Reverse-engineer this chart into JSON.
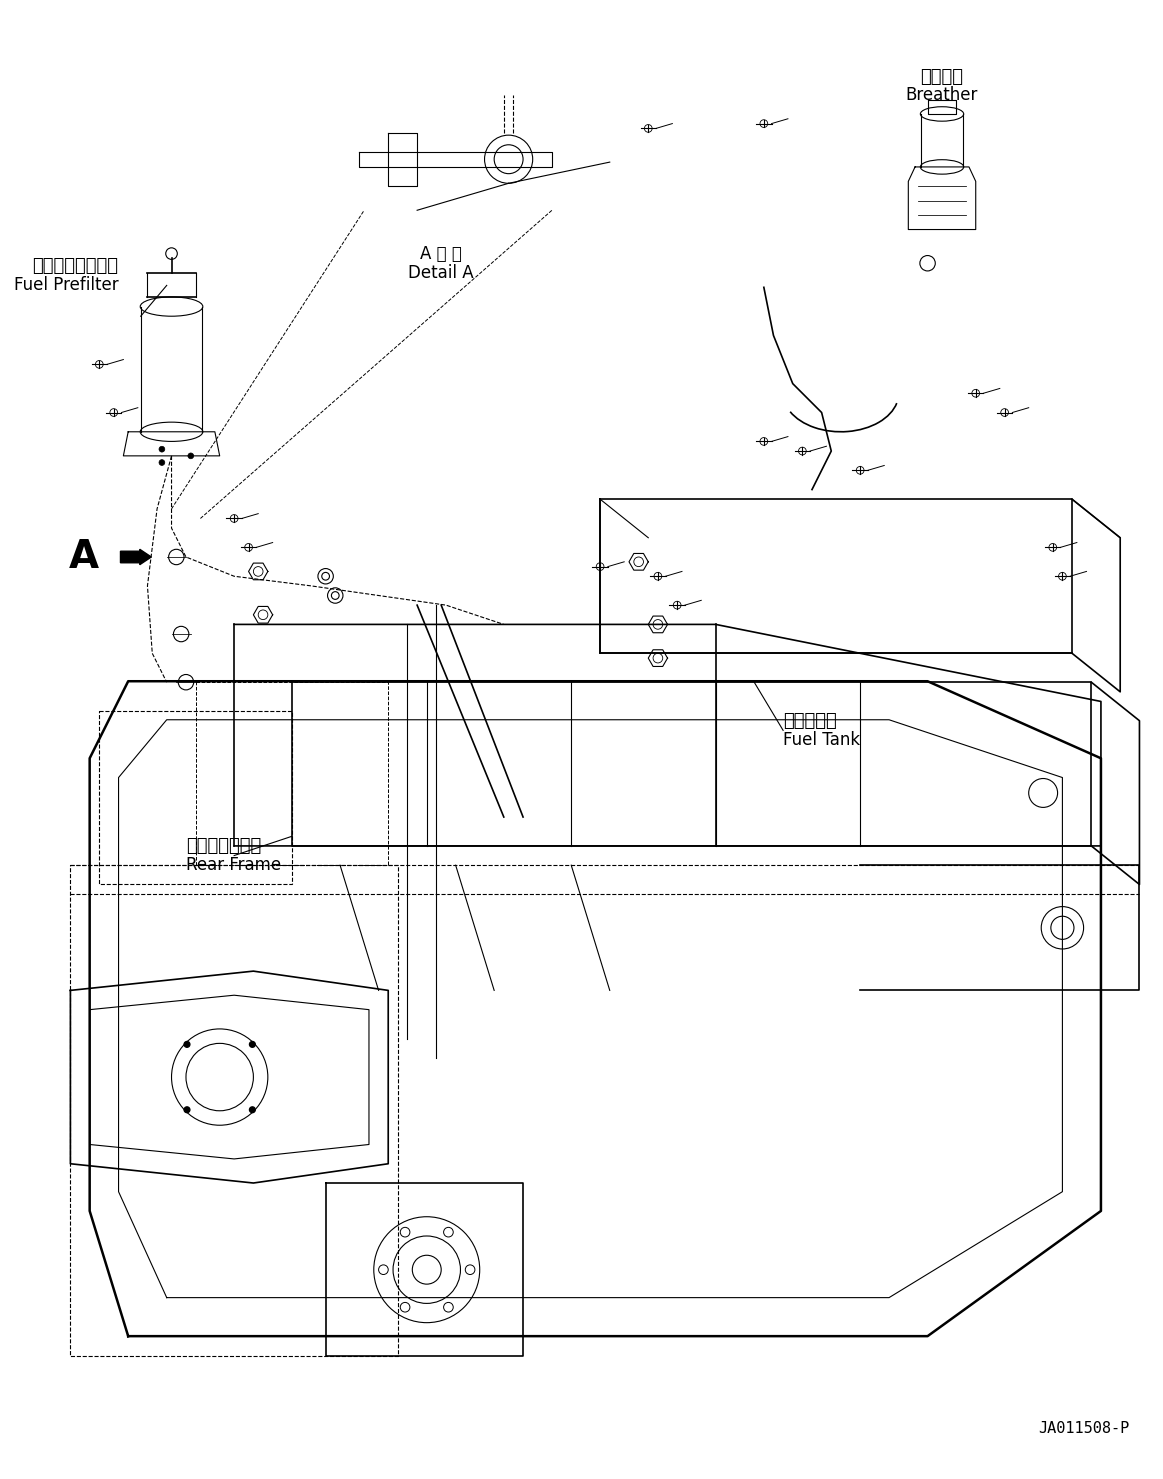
{
  "background_color": "#ffffff",
  "line_color": "#000000",
  "title_text": "",
  "part_number": "JA011508-P",
  "labels": {
    "breather_jp": "ブリーザ",
    "breather_en": "Breather",
    "fuel_prefilter_jp": "燃料プレフィルタ",
    "fuel_prefilter_en": "Fuel Prefilter",
    "detail_a_jp": "A 詳 細",
    "detail_a_en": "Detail A",
    "fuel_tank_jp": "燃料タンク",
    "fuel_tank_en": "Fuel Tank",
    "rear_frame_jp": "リヤーフレーム",
    "rear_frame_en": "Rear Frame",
    "label_A": "A"
  },
  "figsize": [
    11.63,
    14.79
  ],
  "dpi": 100
}
